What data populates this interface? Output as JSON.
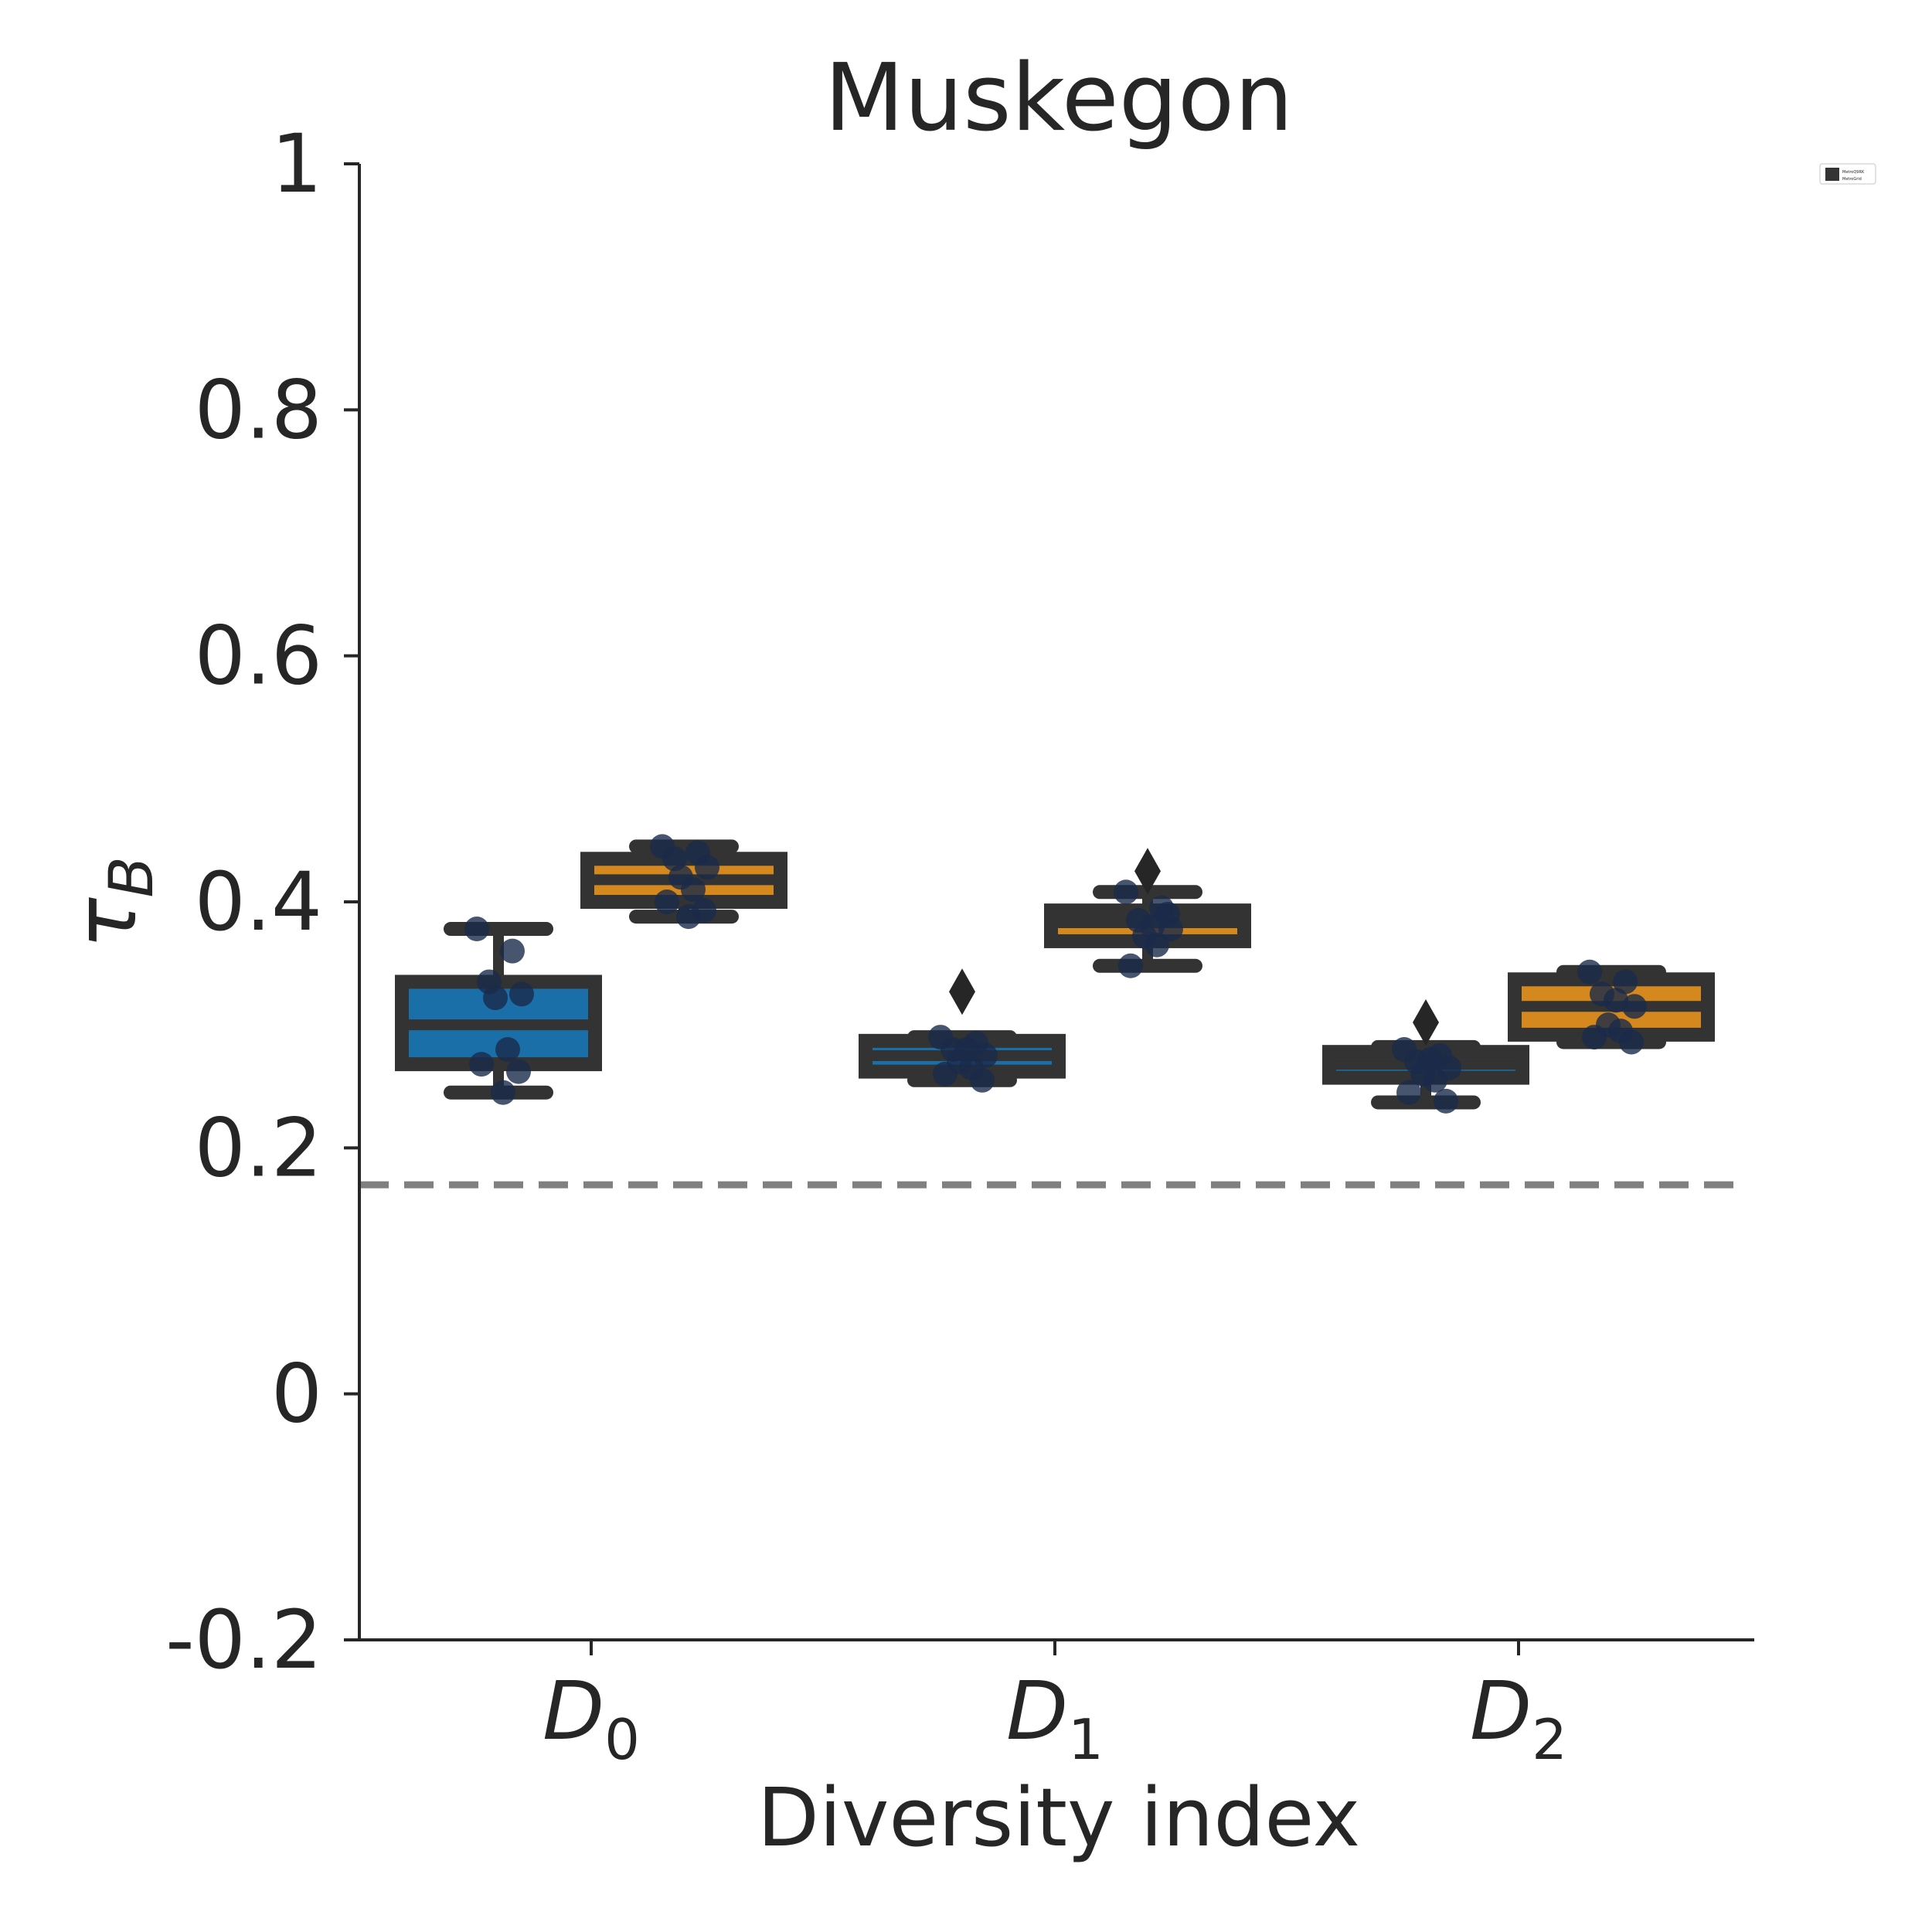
{
  "chart_data": {
    "type": "box",
    "title": "Muskegon",
    "xlabel": "Diversity index",
    "ylabel": "τ",
    "ylabel_sub": "B",
    "ylim": [
      -0.2,
      1.0
    ],
    "yticks": [
      {
        "value": -0.2,
        "label": "-0.2"
      },
      {
        "value": 0,
        "label": "0"
      },
      {
        "value": 0.2,
        "label": "0.2"
      },
      {
        "value": 0.4,
        "label": "0.4"
      },
      {
        "value": 0.6,
        "label": "0.6"
      },
      {
        "value": 0.8,
        "label": "0.8"
      },
      {
        "value": 1.0,
        "label": "1"
      }
    ],
    "categories": [
      {
        "main": "D",
        "sub": "0"
      },
      {
        "main": "D",
        "sub": "1"
      },
      {
        "main": "D",
        "sub": "2"
      }
    ],
    "reference_line": {
      "y": 0.17,
      "style": "dashed",
      "color": "#808080"
    },
    "series": [
      {
        "name": "MetroQ9RK",
        "color": "#1a6fa8",
        "boxes": [
          {
            "q1": 0.268,
            "median": 0.3,
            "q3": 0.335,
            "whisker_low": 0.245,
            "whisker_high": 0.378,
            "points": [
              0.378,
              0.36,
              0.335,
              0.325,
              0.322,
              0.28,
              0.268,
              0.262,
              0.245
            ],
            "outliers": []
          },
          {
            "q1": 0.262,
            "median": 0.275,
            "q3": 0.287,
            "whisker_low": 0.255,
            "whisker_high": 0.29,
            "points": [
              0.29,
              0.285,
              0.28,
              0.275,
              0.27,
              0.265,
              0.26,
              0.255,
              0.28
            ],
            "outliers": [
              0.327
            ]
          },
          {
            "q1": 0.257,
            "median": 0.268,
            "q3": 0.278,
            "whisker_low": 0.237,
            "whisker_high": 0.282,
            "points": [
              0.28,
              0.275,
              0.27,
              0.265,
              0.26,
              0.255,
              0.245,
              0.238,
              0.272
            ],
            "outliers": [
              0.302
            ]
          }
        ]
      },
      {
        "name": "MetroGrid",
        "color": "#d4881e",
        "boxes": [
          {
            "q1": 0.4,
            "median": 0.418,
            "q3": 0.435,
            "whisker_low": 0.388,
            "whisker_high": 0.445,
            "points": [
              0.445,
              0.44,
              0.435,
              0.428,
              0.42,
              0.41,
              0.4,
              0.393,
              0.388
            ],
            "outliers": []
          },
          {
            "q1": 0.368,
            "median": 0.383,
            "q3": 0.393,
            "whisker_low": 0.348,
            "whisker_high": 0.408,
            "points": [
              0.408,
              0.395,
              0.385,
              0.378,
              0.372,
              0.365,
              0.348,
              0.39,
              0.38
            ],
            "outliers": [
              0.425
            ]
          },
          {
            "q1": 0.292,
            "median": 0.315,
            "q3": 0.337,
            "whisker_low": 0.286,
            "whisker_high": 0.343,
            "points": [
              0.343,
              0.335,
              0.325,
              0.315,
              0.3,
              0.295,
              0.29,
              0.286,
              0.32
            ],
            "outliers": []
          }
        ]
      }
    ],
    "point_color": "#1a2a4a",
    "box_edge_color": "#333333",
    "grid": false,
    "legend_position": "top-right"
  }
}
